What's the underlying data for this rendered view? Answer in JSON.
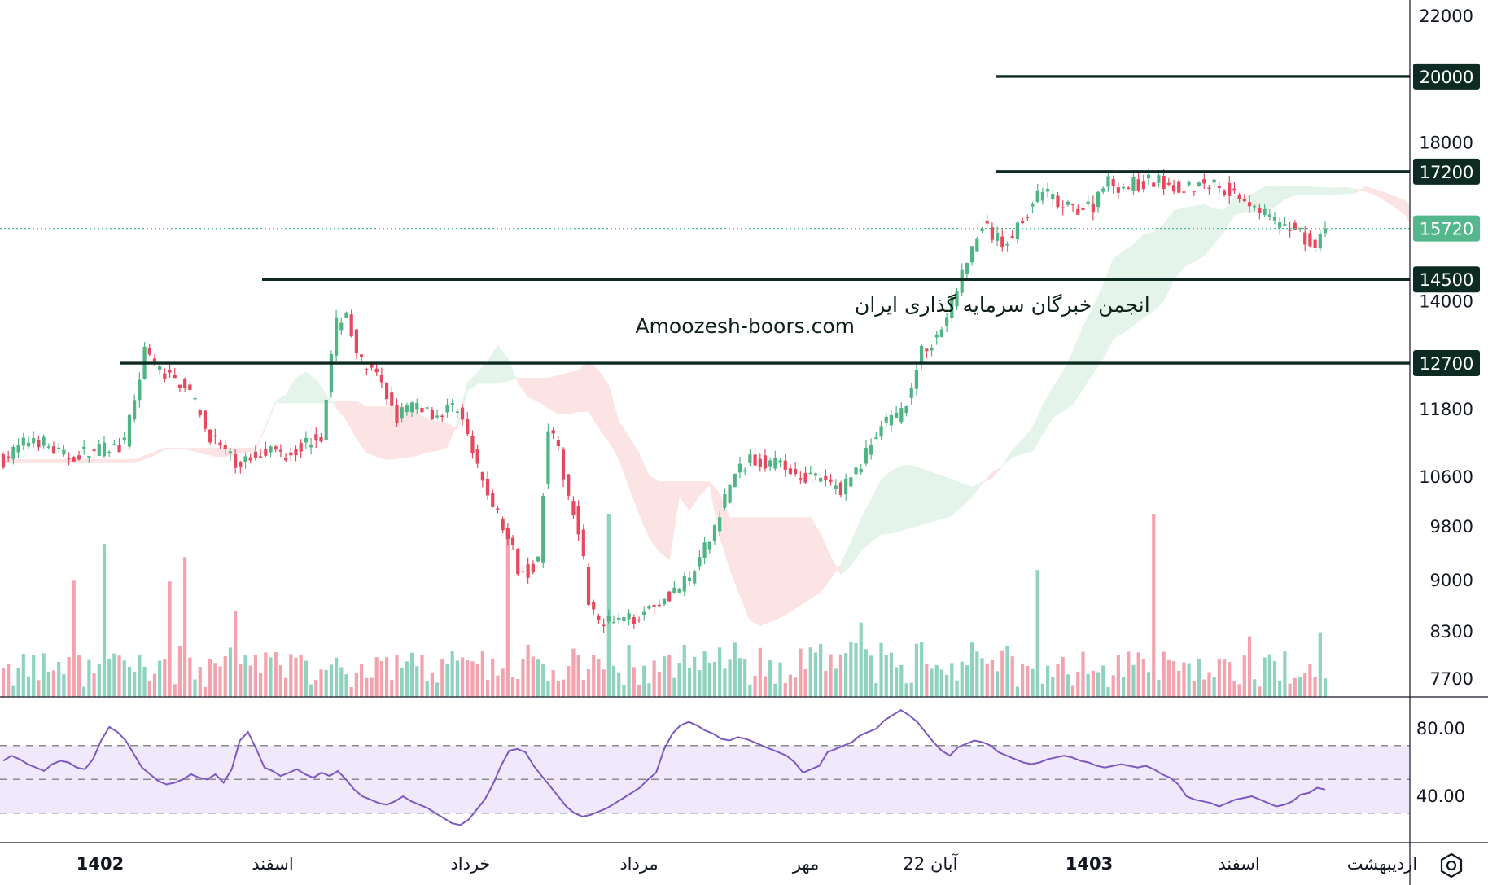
{
  "watermark": {
    "line1": "انجمن خبرگان سرمایه گذاری ایران",
    "line2": "Amoozesh-boors.com"
  },
  "settings_icon": "gear-icon",
  "colors": {
    "up": "#4fb584",
    "down": "#e8485d",
    "vol_up": "#8fd3bf",
    "vol_down": "#f3a3ad",
    "cloud_bull": "#e5f4ea",
    "cloud_bear": "#fde4e4",
    "level_line": "#0d2b22",
    "current_price": "#55b88c",
    "rsi_line": "#7e57c2",
    "rsi_band": "#efe9fb"
  },
  "chart_data": {
    "type": "candlestick",
    "price_axis": {
      "ticks": [
        7700,
        8300,
        9000,
        9800,
        10600,
        11800,
        14000,
        18000,
        22000
      ],
      "scale": "log",
      "range": [
        7450,
        22500
      ]
    },
    "rsi_axis": {
      "ticks": [
        "80.00",
        "40.00"
      ],
      "range": [
        14,
        96
      ],
      "band": [
        30,
        70
      ],
      "mid": 50
    },
    "time_axis": {
      "labels": [
        {
          "text": "1402",
          "bold": true
        },
        {
          "text": "اسفند",
          "bold": false
        },
        {
          "text": "خرداد",
          "bold": false
        },
        {
          "text": "مرداد",
          "bold": false
        },
        {
          "text": "مهر",
          "bold": false
        },
        {
          "text": "22 آبان",
          "bold": false
        },
        {
          "text": "1403",
          "bold": true
        },
        {
          "text": "اسفند",
          "bold": false
        },
        {
          "text": "اردیبهشت",
          "bold": false
        }
      ]
    },
    "levels": [
      {
        "label": "20000",
        "value": 20000
      },
      {
        "label": "17200",
        "value": 17200
      },
      {
        "label": "14500",
        "value": 14500
      },
      {
        "label": "12700",
        "value": 12700
      }
    ],
    "current_price": {
      "label": "15720",
      "value": 15720
    },
    "price_path": [
      [
        0,
        10900
      ],
      [
        6,
        11300
      ],
      [
        12,
        10950
      ],
      [
        18,
        11050
      ],
      [
        24,
        11150
      ],
      [
        28,
        12900
      ],
      [
        32,
        12450
      ],
      [
        36,
        12300
      ],
      [
        40,
        11450
      ],
      [
        46,
        10800
      ],
      [
        52,
        11100
      ],
      [
        56,
        11000
      ],
      [
        60,
        11200
      ],
      [
        63,
        11350
      ],
      [
        66,
        13500
      ],
      [
        68,
        13800
      ],
      [
        70,
        12800
      ],
      [
        74,
        12400
      ],
      [
        78,
        11700
      ],
      [
        82,
        11900
      ],
      [
        86,
        11700
      ],
      [
        90,
        11900
      ],
      [
        94,
        10700
      ],
      [
        98,
        10000
      ],
      [
        102,
        9200
      ],
      [
        104,
        9150
      ],
      [
        106,
        9300
      ],
      [
        108,
        11500
      ],
      [
        110,
        11000
      ],
      [
        112,
        10300
      ],
      [
        114,
        9800
      ],
      [
        116,
        8750
      ],
      [
        118,
        8380
      ],
      [
        124,
        8450
      ],
      [
        130,
        8720
      ],
      [
        136,
        9000
      ],
      [
        140,
        9600
      ],
      [
        144,
        10500
      ],
      [
        148,
        10950
      ],
      [
        152,
        10850
      ],
      [
        158,
        10650
      ],
      [
        162,
        10550
      ],
      [
        166,
        10400
      ],
      [
        170,
        10850
      ],
      [
        174,
        11500
      ],
      [
        178,
        11700
      ],
      [
        182,
        12900
      ],
      [
        186,
        13400
      ],
      [
        190,
        14600
      ],
      [
        192,
        15200
      ],
      [
        194,
        15800
      ],
      [
        196,
        15550
      ],
      [
        198,
        15300
      ],
      [
        200,
        15600
      ],
      [
        202,
        16000
      ],
      [
        206,
        16700
      ],
      [
        210,
        16200
      ],
      [
        216,
        16300
      ],
      [
        218,
        16950
      ],
      [
        222,
        16800
      ],
      [
        228,
        16950
      ],
      [
        234,
        16800
      ],
      [
        240,
        16900
      ],
      [
        246,
        16500
      ],
      [
        250,
        16100
      ],
      [
        254,
        15650
      ],
      [
        256,
        15800
      ],
      [
        260,
        15200
      ],
      [
        262,
        15720
      ]
    ],
    "rsi_values": [
      61,
      64,
      62,
      59,
      57,
      55,
      59,
      61,
      60,
      57,
      56,
      62,
      73,
      81,
      78,
      73,
      65,
      57,
      53,
      49,
      47,
      48,
      50,
      53,
      51,
      50,
      53,
      48,
      56,
      73,
      78,
      68,
      57,
      55,
      52,
      54,
      56,
      53,
      51,
      54,
      52,
      55,
      50,
      44,
      40,
      38,
      36,
      35,
      37,
      40,
      37,
      35,
      33,
      30,
      27,
      24,
      23,
      26,
      32,
      38,
      47,
      58,
      67,
      68,
      66,
      58,
      52,
      46,
      40,
      34,
      30,
      28,
      29,
      31,
      33,
      36,
      39,
      42,
      45,
      50,
      54,
      68,
      77,
      82,
      84,
      82,
      79,
      77,
      74,
      73,
      75,
      74,
      72,
      70,
      68,
      66,
      64,
      60,
      54,
      56,
      58,
      66,
      68,
      70,
      72,
      76,
      78,
      80,
      85,
      88,
      91,
      88,
      84,
      78,
      72,
      67,
      64,
      69,
      71,
      73,
      72,
      70,
      66,
      64,
      62,
      60,
      59,
      60,
      62,
      63,
      64,
      63,
      61,
      60,
      58,
      57,
      58,
      59,
      58,
      57,
      58,
      56,
      53,
      51,
      47,
      40,
      38,
      37,
      36,
      34,
      36,
      38,
      39,
      40,
      38,
      36,
      34,
      35,
      37,
      41,
      42,
      45,
      44
    ],
    "ichimoku_cloud": "Ichimoku cloud (bullish green / bearish red)",
    "volume": "Volume bars",
    "indicator": "RSI(14) with 30/70 band"
  }
}
